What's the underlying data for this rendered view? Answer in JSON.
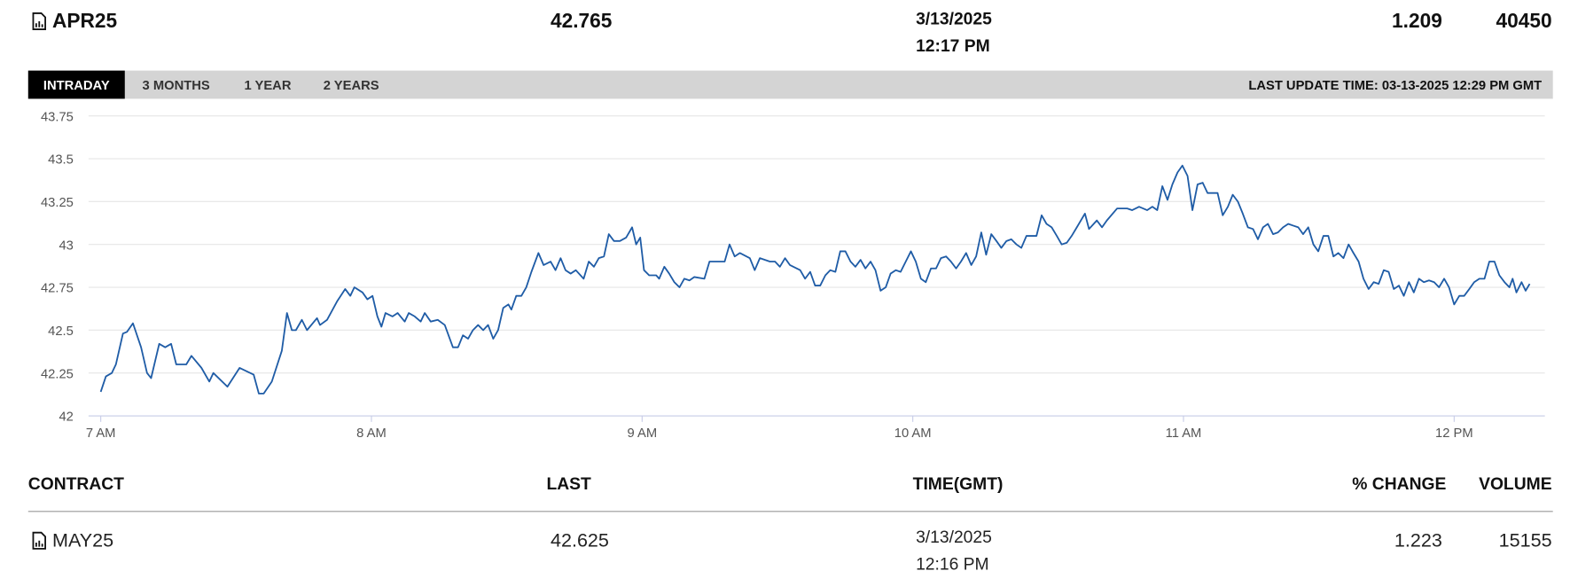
{
  "header": {
    "contract": "APR25",
    "last": 42.765,
    "date": "3/13/2025",
    "time": "12:17 PM",
    "change": 1.209,
    "volume": 40450
  },
  "tabs": [
    "INTRADAY",
    "3 MONTHS",
    "1 YEAR",
    "2 YEARS"
  ],
  "active_tab": 0,
  "last_update": "LAST UPDATE TIME: 03-13-2025 12:29 PM GMT",
  "chart_data": {
    "type": "line",
    "color": "#1f5ca6",
    "grid": true,
    "xlim": [
      6.955,
      12.335
    ],
    "ylim": [
      42,
      43.75
    ],
    "yticks": [
      42,
      42.25,
      42.5,
      42.75,
      43,
      43.25,
      43.5,
      43.75
    ],
    "xticks": [
      {
        "value": 7,
        "label": "7 AM"
      },
      {
        "value": 8,
        "label": "8 AM"
      },
      {
        "value": 9,
        "label": "9 AM"
      },
      {
        "value": 10,
        "label": "10 AM"
      },
      {
        "value": 11,
        "label": "11 AM"
      },
      {
        "value": 12,
        "label": "12 PM"
      }
    ],
    "x": [
      7.0,
      7.019,
      7.041,
      7.056,
      7.082,
      7.097,
      7.119,
      7.149,
      7.171,
      7.186,
      7.216,
      7.238,
      7.26,
      7.279,
      7.316,
      7.335,
      7.372,
      7.401,
      7.416,
      7.468,
      7.513,
      7.565,
      7.584,
      7.602,
      7.632,
      7.669,
      7.688,
      7.706,
      7.721,
      7.743,
      7.762,
      7.799,
      7.81,
      7.836,
      7.874,
      7.903,
      7.922,
      7.937,
      7.967,
      7.985,
      8.004,
      8.022,
      8.037,
      8.052,
      8.078,
      8.097,
      8.123,
      8.138,
      8.16,
      8.182,
      8.197,
      8.219,
      8.245,
      8.271,
      8.301,
      8.32,
      8.338,
      8.357,
      8.375,
      8.394,
      8.413,
      8.431,
      8.45,
      8.468,
      8.487,
      8.506,
      8.517,
      8.535,
      8.554,
      8.572,
      8.591,
      8.617,
      8.636,
      8.662,
      8.68,
      8.699,
      8.717,
      8.736,
      8.755,
      8.784,
      8.803,
      8.822,
      8.84,
      8.859,
      8.877,
      8.896,
      8.918,
      8.941,
      8.963,
      8.978,
      8.993,
      9.007,
      9.026,
      9.052,
      9.063,
      9.082,
      9.1,
      9.119,
      9.138,
      9.156,
      9.175,
      9.193,
      9.23,
      9.249,
      9.268,
      9.305,
      9.323,
      9.342,
      9.361,
      9.398,
      9.416,
      9.435,
      9.472,
      9.491,
      9.509,
      9.528,
      9.546,
      9.584,
      9.602,
      9.621,
      9.639,
      9.658,
      9.677,
      9.695,
      9.714,
      9.732,
      9.751,
      9.77,
      9.788,
      9.807,
      9.825,
      9.844,
      9.862,
      9.881,
      9.9,
      9.918,
      9.937,
      9.955,
      9.974,
      9.993,
      10.011,
      10.03,
      10.048,
      10.067,
      10.086,
      10.104,
      10.123,
      10.141,
      10.16,
      10.178,
      10.197,
      10.216,
      10.234,
      10.253,
      10.271,
      10.29,
      10.309,
      10.327,
      10.346,
      10.364,
      10.383,
      10.401,
      10.42,
      10.457,
      10.476,
      10.494,
      10.513,
      10.532,
      10.55,
      10.569,
      10.587,
      10.606,
      10.636,
      10.651,
      10.68,
      10.699,
      10.717,
      10.755,
      10.792,
      10.81,
      10.836,
      10.866,
      10.885,
      10.903,
      10.922,
      10.941,
      10.959,
      10.978,
      10.996,
      11.015,
      11.033,
      11.052,
      11.071,
      11.089,
      11.126,
      11.145,
      11.164,
      11.182,
      11.201,
      11.219,
      11.238,
      11.257,
      11.275,
      11.294,
      11.312,
      11.331,
      11.349,
      11.368,
      11.387,
      11.405,
      11.424,
      11.442,
      11.461,
      11.48,
      11.498,
      11.517,
      11.535,
      11.554,
      11.572,
      11.591,
      11.61,
      11.628,
      11.647,
      11.665,
      11.684,
      11.703,
      11.721,
      11.74,
      11.758,
      11.777,
      11.796,
      11.814,
      11.833,
      11.851,
      11.87,
      11.888,
      11.907,
      11.926,
      11.944,
      11.963,
      11.981,
      12.0,
      12.019,
      12.037,
      12.056,
      12.074,
      12.093,
      12.112,
      12.13,
      12.149,
      12.167,
      12.186,
      12.204,
      12.216,
      12.23,
      12.249,
      12.264,
      12.279
    ],
    "values": [
      42.14,
      42.23,
      42.25,
      42.3,
      42.48,
      42.49,
      42.54,
      42.4,
      42.25,
      42.22,
      42.42,
      42.4,
      42.42,
      42.3,
      42.3,
      42.35,
      42.28,
      42.2,
      42.25,
      42.17,
      42.28,
      42.24,
      42.13,
      42.13,
      42.2,
      42.38,
      42.6,
      42.5,
      42.5,
      42.56,
      42.5,
      42.57,
      42.53,
      42.56,
      42.67,
      42.74,
      42.7,
      42.75,
      42.72,
      42.68,
      42.7,
      42.58,
      42.52,
      42.6,
      42.58,
      42.6,
      42.55,
      42.6,
      42.58,
      42.55,
      42.6,
      42.55,
      42.56,
      42.53,
      42.4,
      42.4,
      42.47,
      42.45,
      42.5,
      42.53,
      42.5,
      42.53,
      42.45,
      42.5,
      42.63,
      42.65,
      42.62,
      42.7,
      42.7,
      42.75,
      42.84,
      42.95,
      42.88,
      42.9,
      42.85,
      42.92,
      42.85,
      42.83,
      42.85,
      42.8,
      42.9,
      42.87,
      42.92,
      42.93,
      43.06,
      43.02,
      43.02,
      43.04,
      43.1,
      43.0,
      43.04,
      42.85,
      42.82,
      42.82,
      42.8,
      42.87,
      42.83,
      42.78,
      42.75,
      42.8,
      42.79,
      42.81,
      42.8,
      42.9,
      42.9,
      42.9,
      43.0,
      42.93,
      42.95,
      42.92,
      42.85,
      42.92,
      42.9,
      42.9,
      42.87,
      42.92,
      42.88,
      42.85,
      42.8,
      42.84,
      42.76,
      42.76,
      42.82,
      42.85,
      42.84,
      42.96,
      42.96,
      42.9,
      42.87,
      42.91,
      42.86,
      42.9,
      42.85,
      42.73,
      42.75,
      42.83,
      42.85,
      42.84,
      42.9,
      42.96,
      42.9,
      42.8,
      42.78,
      42.86,
      42.86,
      42.92,
      42.93,
      42.9,
      42.86,
      42.9,
      42.95,
      42.88,
      42.93,
      43.07,
      42.94,
      43.06,
      43.02,
      42.98,
      43.02,
      43.03,
      43.0,
      42.98,
      43.05,
      43.05,
      43.17,
      43.12,
      43.1,
      43.05,
      43.0,
      43.01,
      43.05,
      43.1,
      43.18,
      43.09,
      43.14,
      43.1,
      43.14,
      43.21,
      43.21,
      43.2,
      43.22,
      43.2,
      43.22,
      43.2,
      43.34,
      43.26,
      43.35,
      43.42,
      43.46,
      43.4,
      43.2,
      43.35,
      43.36,
      43.3,
      43.3,
      43.17,
      43.22,
      43.29,
      43.25,
      43.18,
      43.1,
      43.09,
      43.03,
      43.1,
      43.12,
      43.06,
      43.07,
      43.1,
      43.12,
      43.11,
      43.1,
      43.06,
      43.1,
      43.0,
      42.96,
      43.05,
      43.05,
      42.93,
      42.95,
      42.92,
      43.0,
      42.95,
      42.9,
      42.8,
      42.74,
      42.78,
      42.77,
      42.85,
      42.84,
      42.74,
      42.76,
      42.7,
      42.78,
      42.72,
      42.8,
      42.78,
      42.79,
      42.78,
      42.75,
      42.8,
      42.75,
      42.65,
      42.7,
      42.7,
      42.74,
      42.78,
      42.8,
      42.8,
      42.9,
      42.9,
      42.82,
      42.78,
      42.75,
      42.8,
      42.72,
      42.78,
      42.73,
      42.77
    ]
  },
  "table": {
    "columns": [
      "CONTRACT",
      "LAST",
      "TIME(GMT)",
      "% CHANGE",
      "VOLUME"
    ],
    "rows": [
      [
        "MAY25",
        42.625,
        "3/13/2025",
        "12:16 PM",
        1.223,
        15155
      ]
    ]
  }
}
